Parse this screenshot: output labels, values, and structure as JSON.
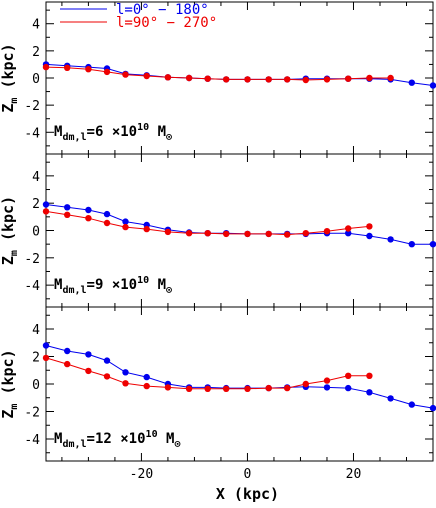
{
  "colors": {
    "series_a": "#0000ee",
    "series_b": "#ee0000",
    "axes": "#000000"
  },
  "chart_data": {
    "type": "line",
    "xlabel": "X (kpc)",
    "xlim": [
      -38,
      35
    ],
    "x_ticks": [
      -20,
      0,
      20
    ],
    "ylim": [
      -5.6,
      5.6
    ],
    "y_ticks": [
      -4,
      -2,
      0,
      2,
      4
    ],
    "legend": {
      "placement": "top-left",
      "entries": [
        "l=0° − 180°",
        "l=90° − 270°"
      ]
    },
    "panels": [
      {
        "ylabel": "Z_m (kpc)",
        "annotation": {
          "base": "M",
          "sub": "dm,l",
          "coef": "=6 ×10",
          "exp": "10",
          "unit": "M",
          "unit_sub": "⊙"
        },
        "series": [
          {
            "color": "#0000ee",
            "x": [
              -38,
              -34,
              -30,
              -26.5,
              -23,
              -19,
              -15,
              -11,
              -7.5,
              -4,
              0,
              4,
              7.5,
              11,
              15,
              19,
              23,
              27,
              31,
              35
            ],
            "y": [
              1.0,
              0.9,
              0.8,
              0.7,
              0.3,
              0.2,
              0.05,
              0.0,
              -0.05,
              -0.1,
              -0.1,
              -0.1,
              -0.1,
              -0.05,
              -0.05,
              -0.05,
              -0.05,
              -0.1,
              -0.35,
              -0.55
            ]
          },
          {
            "color": "#ee0000",
            "x": [
              -38,
              -34,
              -30,
              -26.5,
              -23,
              -19,
              -15,
              -11,
              -7.5,
              -4,
              0,
              4,
              7.5,
              11,
              15,
              19,
              23,
              27
            ],
            "y": [
              0.8,
              0.75,
              0.65,
              0.45,
              0.25,
              0.15,
              0.05,
              0.0,
              -0.05,
              -0.1,
              -0.1,
              -0.1,
              -0.1,
              -0.15,
              -0.1,
              -0.05,
              0.0,
              0.0
            ]
          }
        ]
      },
      {
        "ylabel": "Z_m (kpc)",
        "annotation": {
          "base": "M",
          "sub": "dm,l",
          "coef": "=9 ×10",
          "exp": "10",
          "unit": "M",
          "unit_sub": "⊙"
        },
        "series": [
          {
            "color": "#0000ee",
            "x": [
              -38,
              -34,
              -30,
              -26.5,
              -23,
              -19,
              -15,
              -11,
              -7.5,
              -4,
              0,
              4,
              7.5,
              11,
              15,
              19,
              23,
              27,
              31,
              35
            ],
            "y": [
              1.9,
              1.7,
              1.5,
              1.2,
              0.65,
              0.4,
              0.05,
              -0.15,
              -0.2,
              -0.2,
              -0.25,
              -0.25,
              -0.25,
              -0.25,
              -0.2,
              -0.2,
              -0.4,
              -0.65,
              -1.0,
              -1.0
            ]
          },
          {
            "color": "#ee0000",
            "x": [
              -38,
              -34,
              -30,
              -26.5,
              -23,
              -19,
              -15,
              -11,
              -7.5,
              -4,
              0,
              4,
              7.5,
              11,
              15,
              19,
              23
            ],
            "y": [
              1.4,
              1.15,
              0.9,
              0.55,
              0.25,
              0.1,
              -0.1,
              -0.2,
              -0.2,
              -0.25,
              -0.25,
              -0.25,
              -0.3,
              -0.2,
              -0.05,
              0.15,
              0.3
            ]
          }
        ]
      },
      {
        "ylabel": "Z_m (kpc)",
        "annotation": {
          "base": "M",
          "sub": "dm,l",
          "coef": "=12 ×10",
          "exp": "10",
          "unit": "M",
          "unit_sub": "⊙"
        },
        "series": [
          {
            "color": "#0000ee",
            "x": [
              -38,
              -34,
              -30,
              -26.5,
              -23,
              -19,
              -15,
              -11,
              -7.5,
              -4,
              0,
              4,
              7.5,
              11,
              15,
              19,
              23,
              27,
              31,
              35
            ],
            "y": [
              2.8,
              2.4,
              2.15,
              1.7,
              0.85,
              0.5,
              0.0,
              -0.25,
              -0.25,
              -0.3,
              -0.3,
              -0.3,
              -0.25,
              -0.2,
              -0.25,
              -0.3,
              -0.6,
              -1.05,
              -1.5,
              -1.75
            ]
          },
          {
            "color": "#ee0000",
            "x": [
              -38,
              -34,
              -30,
              -26.5,
              -23,
              -19,
              -15,
              -11,
              -7.5,
              -4,
              0,
              4,
              7.5,
              11,
              15,
              19,
              23
            ],
            "y": [
              1.9,
              1.45,
              0.95,
              0.55,
              0.05,
              -0.15,
              -0.25,
              -0.35,
              -0.35,
              -0.35,
              -0.35,
              -0.3,
              -0.3,
              0.0,
              0.25,
              0.6,
              0.6
            ]
          }
        ]
      }
    ]
  }
}
